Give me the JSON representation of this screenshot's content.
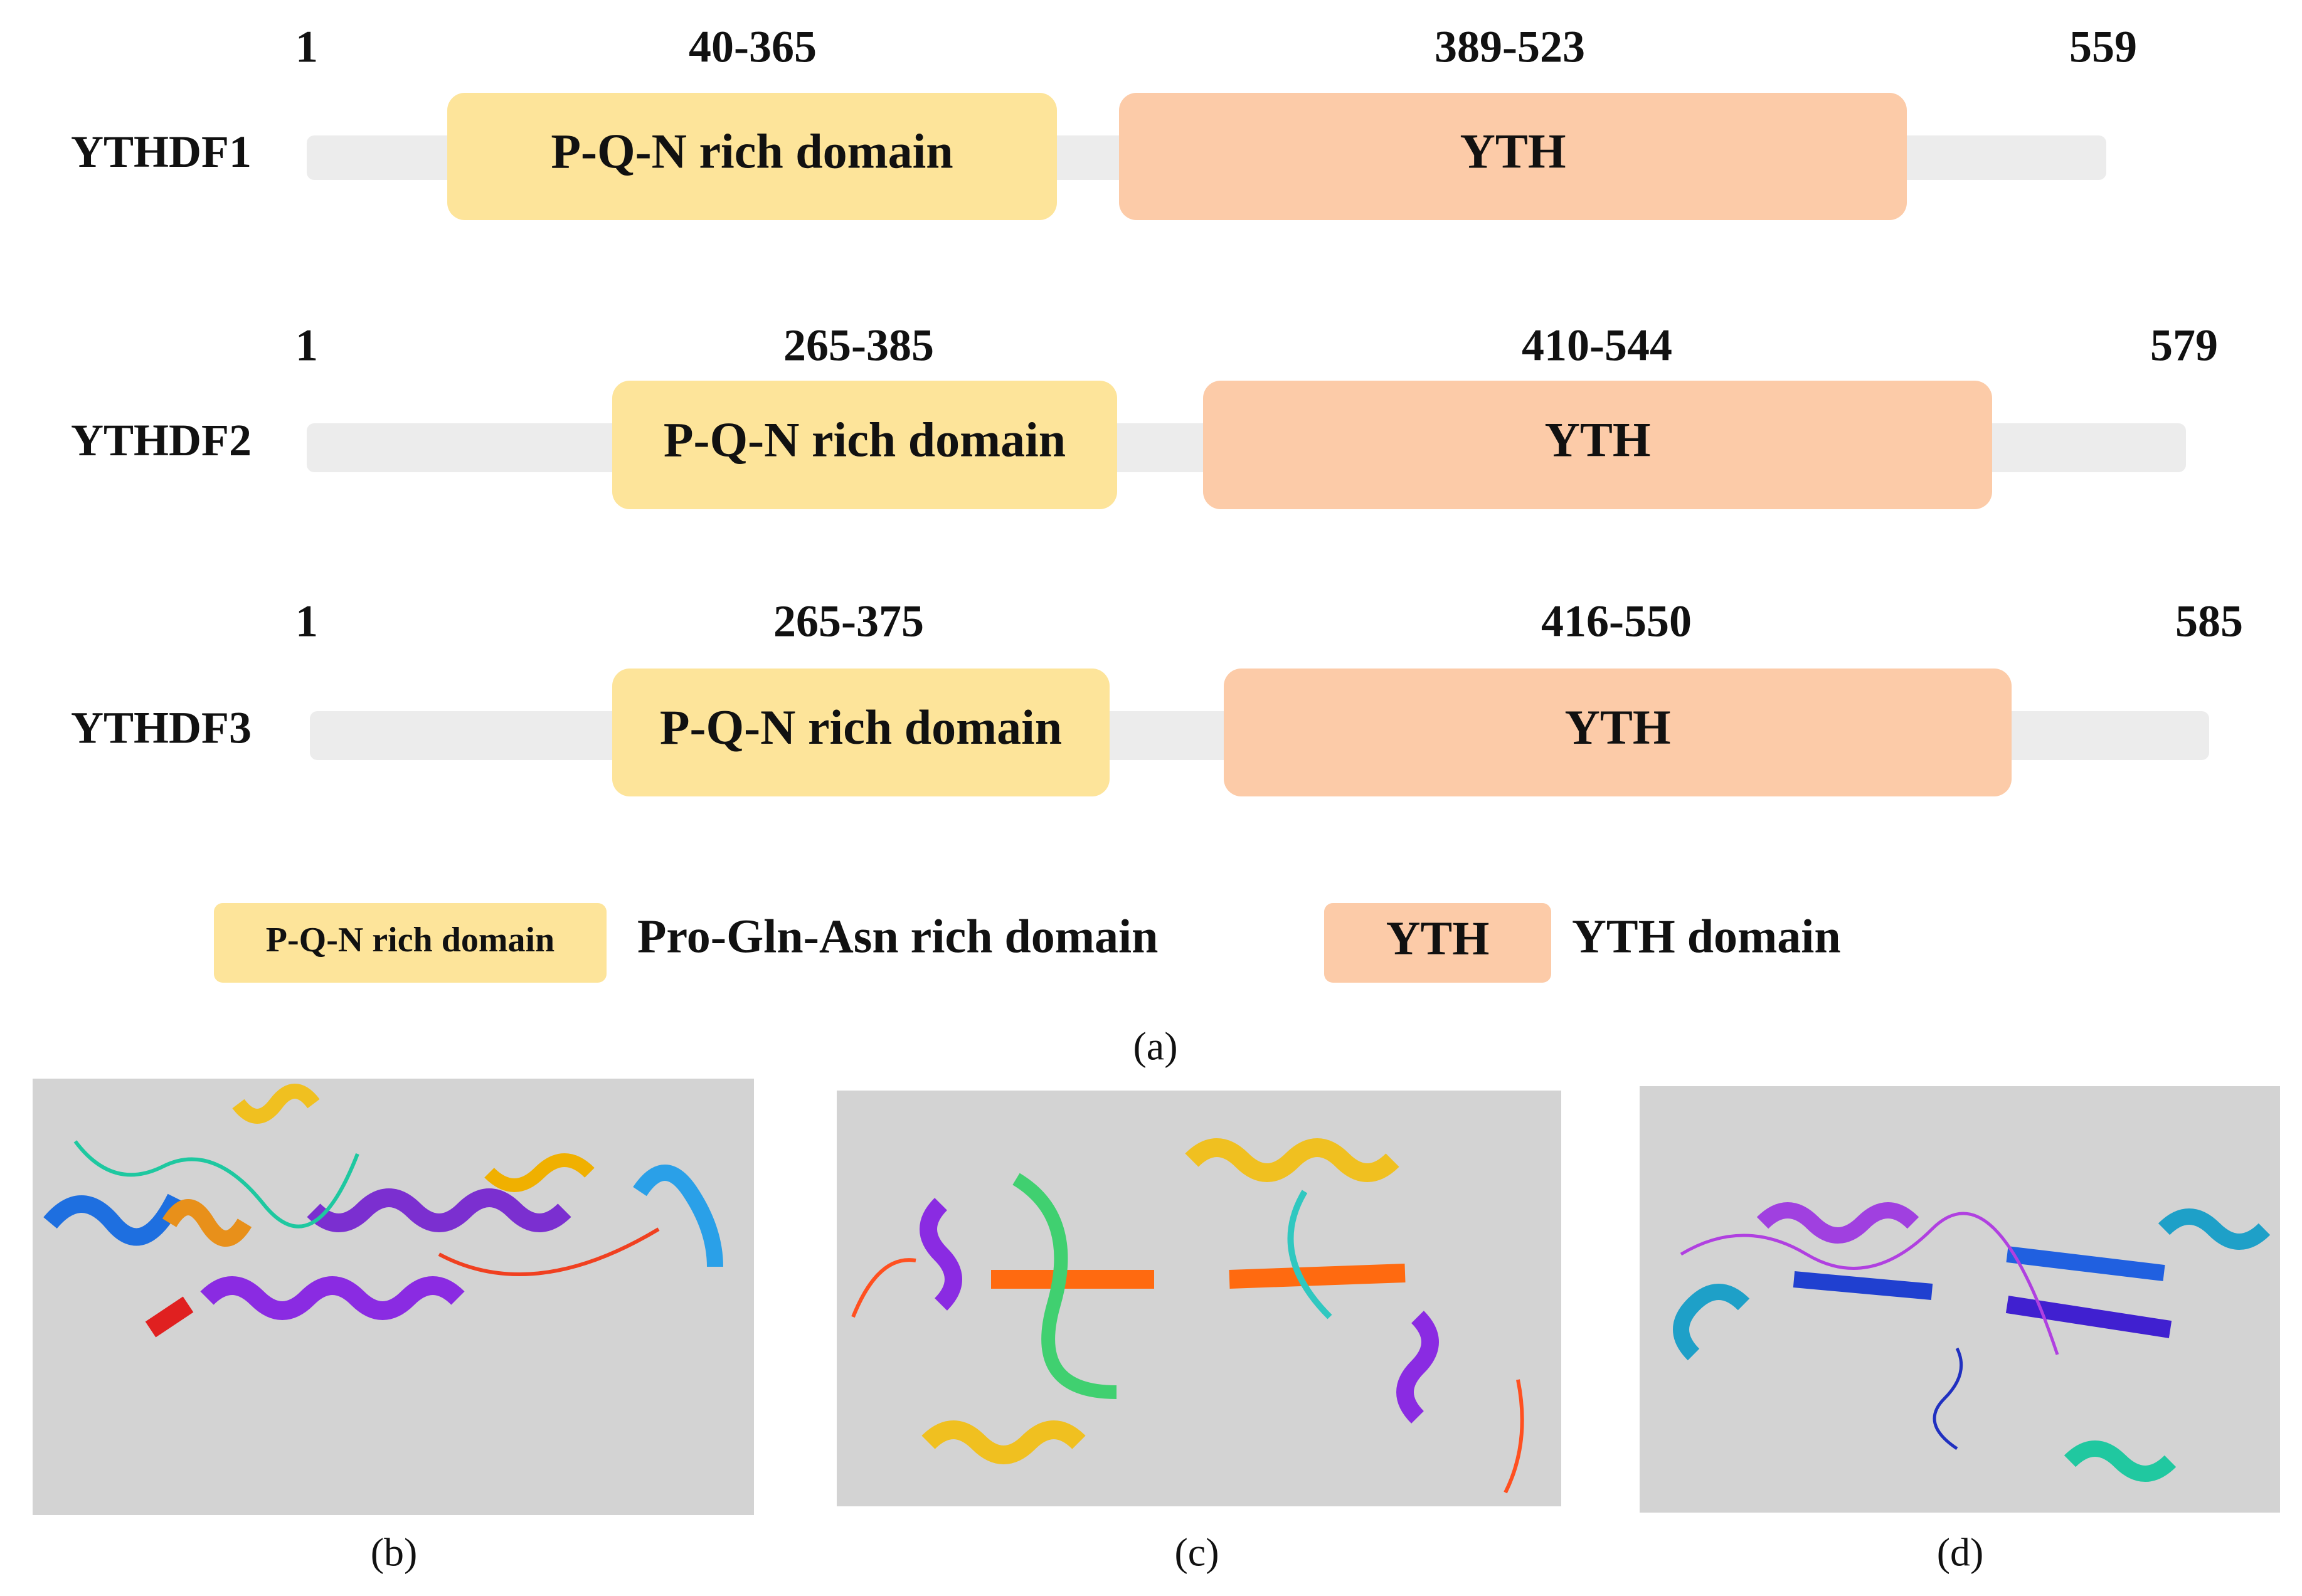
{
  "proteins": [
    {
      "name": "YTHDF1",
      "start": "1",
      "end": "559",
      "domains": [
        {
          "range": "40-365",
          "label": "P-Q-N rich domain"
        },
        {
          "range": "389-523",
          "label": "YTH"
        }
      ]
    },
    {
      "name": "YTHDF2",
      "start": "1",
      "end": "579",
      "domains": [
        {
          "range": "265-385",
          "label": "P-Q-N rich domain"
        },
        {
          "range": "410-544",
          "label": "YTH"
        }
      ]
    },
    {
      "name": "YTHDF3",
      "start": "1",
      "end": "585",
      "domains": [
        {
          "range": "265-375",
          "label": "P-Q-N rich domain"
        },
        {
          "range": "416-550",
          "label": "YTH"
        }
      ]
    }
  ],
  "legend": [
    {
      "box": "P-Q-N rich domain",
      "text": "Pro-Gln-Asn rich domain"
    },
    {
      "box": "YTH",
      "text": "YTH domain"
    }
  ],
  "captions": {
    "a": "(a)",
    "b": "(b)",
    "c": "(c)",
    "d": "(d)"
  }
}
